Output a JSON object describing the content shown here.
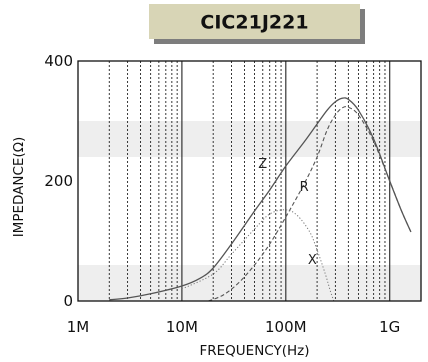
{
  "chart_data": {
    "type": "line",
    "title": "CIC21J221",
    "xlabel": "FREQUENCY(Hz)",
    "ylabel": "IMPEDANCE(Ω)",
    "x_scale": "log",
    "xlim": [
      1000000,
      2000000000
    ],
    "ylim": [
      0,
      400
    ],
    "x_tick_labels": [
      {
        "value": 1000000,
        "label": "1M"
      },
      {
        "value": 10000000,
        "label": "10M"
      },
      {
        "value": 100000000,
        "label": "100M"
      },
      {
        "value": 1000000000,
        "label": "1G"
      }
    ],
    "y_tick_labels": [
      {
        "value": 0,
        "label": "0"
      },
      {
        "value": 200,
        "label": "200"
      },
      {
        "value": 400,
        "label": "400"
      }
    ],
    "grid": true,
    "series": [
      {
        "name": "Z",
        "label_at": [
          60000000,
          222
        ],
        "points": [
          [
            2000000,
            2
          ],
          [
            3000000,
            5
          ],
          [
            5000000,
            12
          ],
          [
            10000000,
            25
          ],
          [
            15000000,
            38
          ],
          [
            20000000,
            55
          ],
          [
            30000000,
            95
          ],
          [
            50000000,
            150
          ],
          [
            70000000,
            185
          ],
          [
            100000000,
            225
          ],
          [
            150000000,
            265
          ],
          [
            200000000,
            295
          ],
          [
            250000000,
            318
          ],
          [
            300000000,
            332
          ],
          [
            350000000,
            338
          ],
          [
            400000000,
            336
          ],
          [
            500000000,
            318
          ],
          [
            700000000,
            270
          ],
          [
            1000000000,
            200
          ],
          [
            1300000000,
            150
          ],
          [
            1600000000,
            115
          ]
        ]
      },
      {
        "name": "R",
        "label_at": [
          150000000,
          183
        ],
        "points": [
          [
            18000000,
            0
          ],
          [
            25000000,
            10
          ],
          [
            35000000,
            30
          ],
          [
            50000000,
            60
          ],
          [
            70000000,
            95
          ],
          [
            100000000,
            140
          ],
          [
            150000000,
            195
          ],
          [
            200000000,
            240
          ],
          [
            250000000,
            285
          ],
          [
            300000000,
            310
          ],
          [
            350000000,
            322
          ],
          [
            400000000,
            323
          ],
          [
            500000000,
            310
          ],
          [
            700000000,
            266
          ],
          [
            1000000000,
            200
          ],
          [
            1300000000,
            150
          ],
          [
            1600000000,
            115
          ]
        ]
      },
      {
        "name": "X",
        "label_at": [
          180000000,
          62
        ],
        "points": [
          [
            10000000,
            20
          ],
          [
            20000000,
            45
          ],
          [
            30000000,
            78
          ],
          [
            50000000,
            120
          ],
          [
            70000000,
            145
          ],
          [
            100000000,
            152
          ],
          [
            130000000,
            142
          ],
          [
            170000000,
            115
          ],
          [
            200000000,
            85
          ],
          [
            240000000,
            45
          ],
          [
            270000000,
            15
          ],
          [
            290000000,
            0
          ]
        ]
      }
    ]
  }
}
